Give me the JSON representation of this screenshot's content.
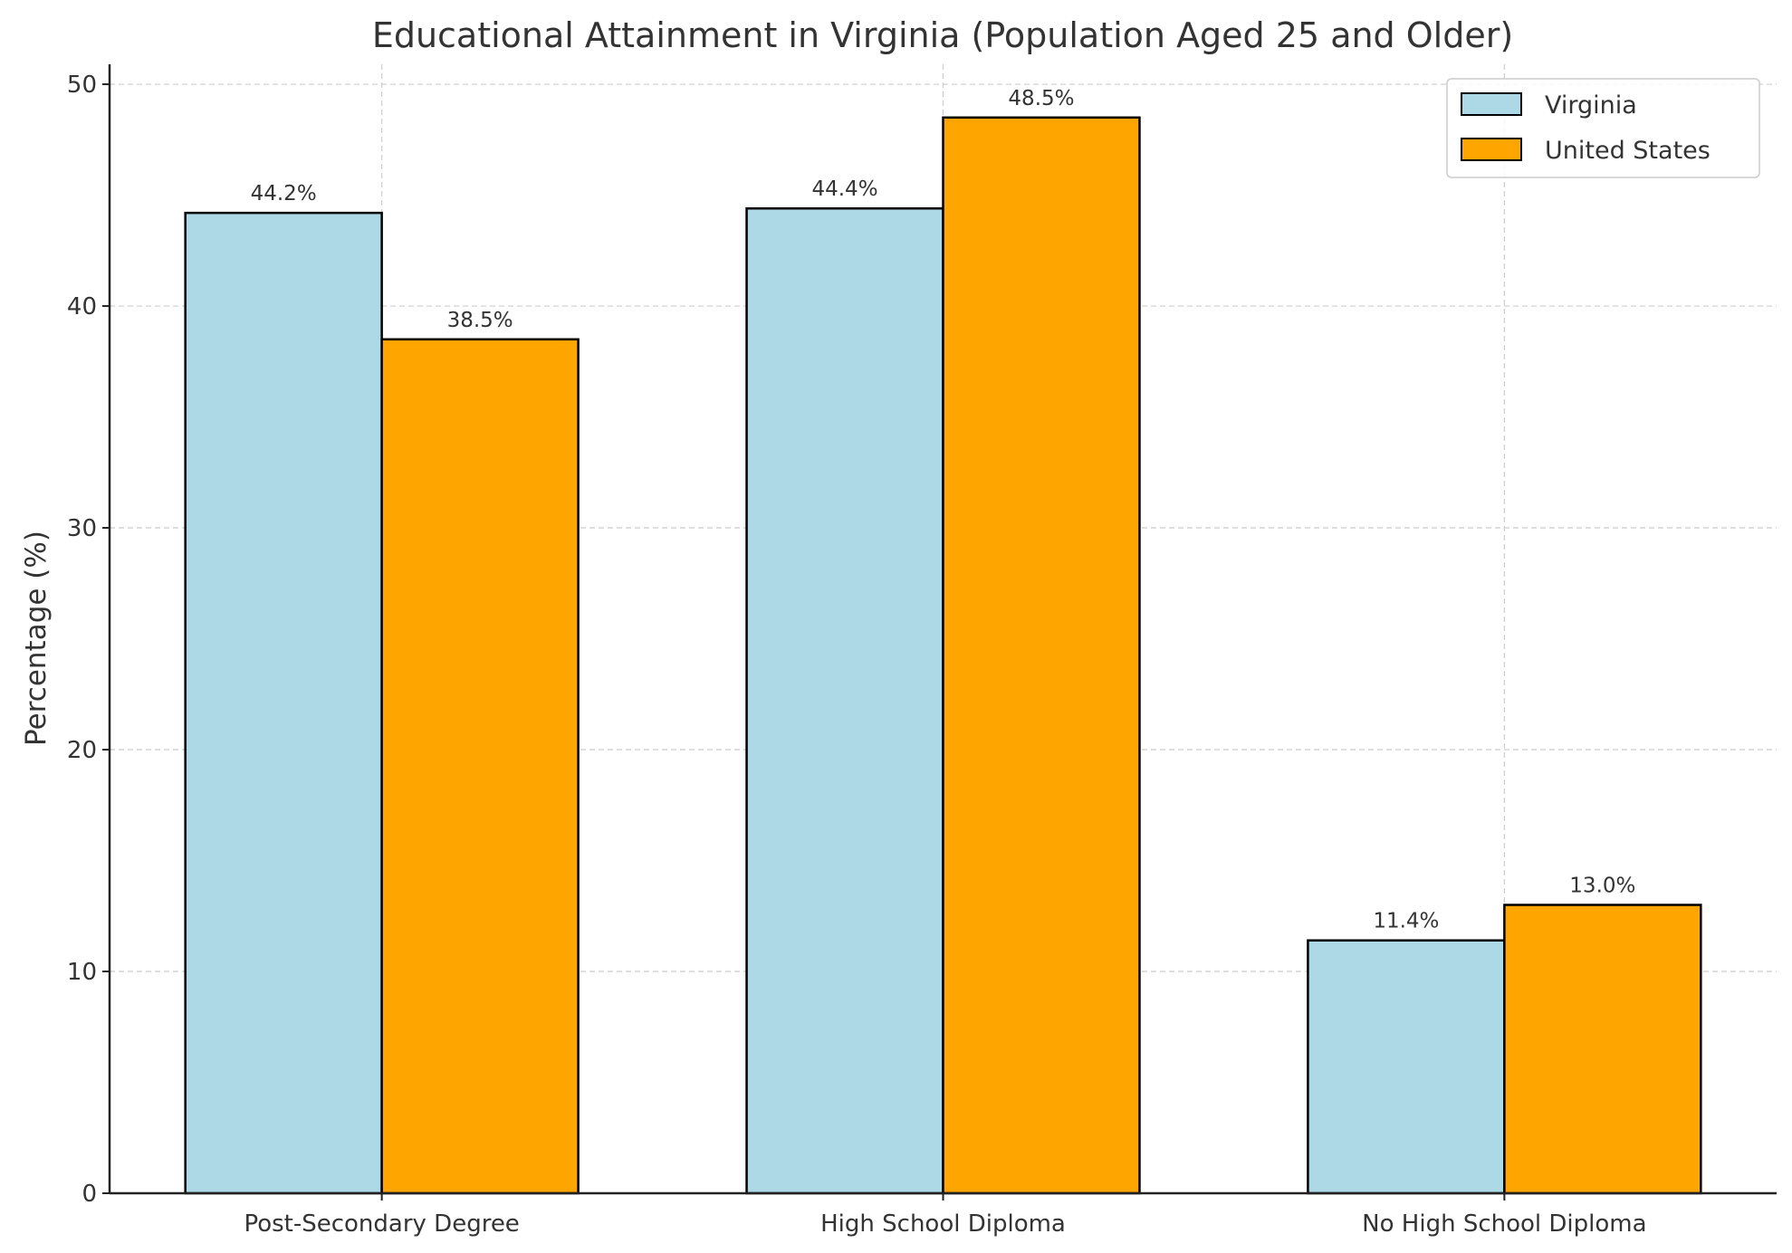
{
  "chart_data": {
    "type": "bar",
    "title": "Educational Attainment in Virginia (Population Aged 25 and Older)",
    "xlabel": "",
    "ylabel": "Percentage (%)",
    "categories": [
      "Post-Secondary Degree",
      "High School Diploma",
      "No High School Diploma"
    ],
    "series": [
      {
        "name": "Virginia",
        "values": [
          44.2,
          44.4,
          11.4
        ],
        "labels": [
          "44.2%",
          "44.4%",
          "11.4%"
        ],
        "color": "#add8e6"
      },
      {
        "name": "United States",
        "values": [
          38.5,
          48.5,
          13.0
        ],
        "labels": [
          "38.5%",
          "48.5%",
          "13.0%"
        ],
        "color": "#ffa500"
      }
    ],
    "ylim": [
      0,
      50.9
    ],
    "yticks": [
      "0",
      "10",
      "20",
      "30",
      "40",
      "50"
    ],
    "grid": true,
    "legend_position": "top-right"
  }
}
